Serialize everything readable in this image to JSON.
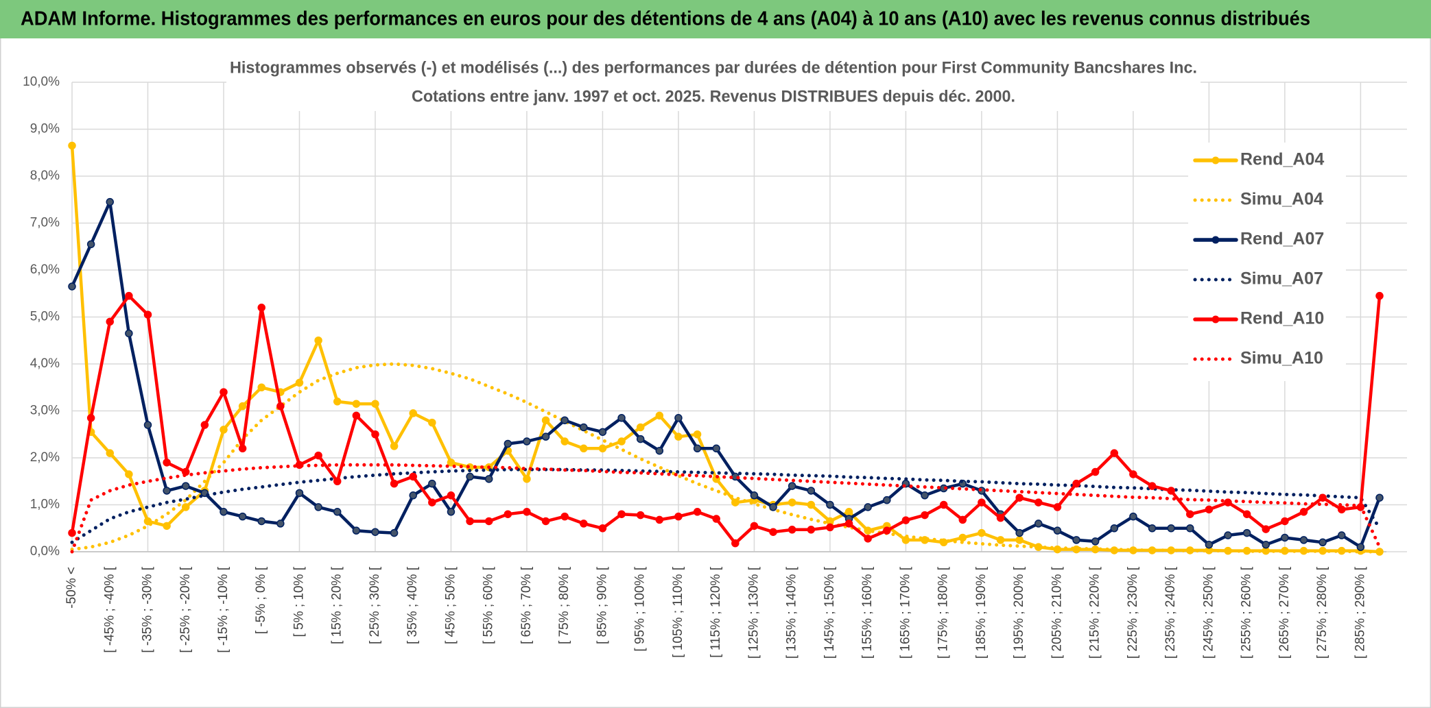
{
  "header": {
    "title": "ADAM Informe. Histogrammes des performances en euros pour des détentions de 4 ans (A04) à 10 ans (A10) avec les revenus connus distribués"
  },
  "chart_data": {
    "type": "line",
    "title": "Histogrammes observés (-) et modélisés (...) des performances par durées de détention pour First Community Bancshares Inc.",
    "subtitle": "Cotations entre janv. 1997 et oct. 2025. Revenus DISTRIBUES depuis déc. 2000.",
    "categories": [
      "-50% <",
      null,
      "[ -45% ; -40% [",
      null,
      "[ -35% ; -30% [",
      null,
      "[ -25% ; -20% [",
      null,
      "[ -15% ; -10% [",
      null,
      "[ -5% ; 0% [",
      null,
      "[ 5% ; 10% [",
      null,
      "[ 15% ; 20% [",
      null,
      "[ 25% ; 30% [",
      null,
      "[ 35% ; 40% [",
      null,
      "[ 45% ; 50% [",
      null,
      "[ 55% ; 60% [",
      null,
      "[ 65% ; 70% [",
      null,
      "[ 75% ; 80% [",
      null,
      "[ 85% ; 90% [",
      null,
      "[ 95% ; 100% [",
      null,
      "[ 105% ; 110% [",
      null,
      "[ 115% ; 120% [",
      null,
      "[ 125% ; 130% [",
      null,
      "[ 135% ; 140% [",
      null,
      "[ 145% ; 150% [",
      null,
      "[ 155% ; 160% [",
      null,
      "[ 165% ; 170% [",
      null,
      "[ 175% ; 180% [",
      null,
      "[ 185% ; 190% [",
      null,
      "[ 195% ; 200% [",
      null,
      "[ 205% ; 210% [",
      null,
      "[ 215% ; 220% [",
      null,
      "[ 225% ; 230% [",
      null,
      "[ 235% ; 240% [",
      null,
      "[ 245% ; 250% [",
      null,
      "[ 255% ; 260% [",
      null,
      "[ 265% ; 270% [",
      null,
      "[ 275% ; 280% [",
      null,
      "[ 285% ; 290% [",
      null
    ],
    "ylim": [
      0,
      10
    ],
    "yticks": [
      {
        "value": 0,
        "label": "0,0%"
      },
      {
        "value": 1,
        "label": "1,0%"
      },
      {
        "value": 2,
        "label": "2,0%"
      },
      {
        "value": 3,
        "label": "3,0%"
      },
      {
        "value": 4,
        "label": "4,0%"
      },
      {
        "value": 5,
        "label": "5,0%"
      },
      {
        "value": 6,
        "label": "6,0%"
      },
      {
        "value": 7,
        "label": "7,0%"
      },
      {
        "value": 8,
        "label": "8,0%"
      },
      {
        "value": 9,
        "label": "9,0%"
      },
      {
        "value": 10,
        "label": "10,0%"
      }
    ],
    "grid": true,
    "legend": "right",
    "series": [
      {
        "name": "Rend_A04",
        "color": "#ffc000",
        "style": "solid",
        "values": [
          8.65,
          2.55,
          2.1,
          1.65,
          0.65,
          0.55,
          0.95,
          1.3,
          2.6,
          3.1,
          3.5,
          3.4,
          3.6,
          4.5,
          3.2,
          3.15,
          3.15,
          2.25,
          2.95,
          2.75,
          1.9,
          1.8,
          1.8,
          2.15,
          1.55,
          2.8,
          2.35,
          2.2,
          2.2,
          2.35,
          2.65,
          2.9,
          2.45,
          2.5,
          1.55,
          1.05,
          1.1,
          1.0,
          1.05,
          1.0,
          0.65,
          0.85,
          0.45,
          0.55,
          0.25,
          0.25,
          0.2,
          0.3,
          0.4,
          0.25,
          0.25,
          0.1,
          0.05,
          0.05,
          0.05,
          0.03,
          0.03,
          0.03,
          0.03,
          0.03,
          0.03,
          0.02,
          0.02,
          0.02,
          0.02,
          0.02,
          0.02,
          0.02,
          0.02,
          0.0
        ]
      },
      {
        "name": "Simu_A04",
        "color": "#ffc000",
        "style": "dotted",
        "values": [
          0.05,
          0.1,
          0.2,
          0.35,
          0.55,
          0.8,
          1.1,
          1.5,
          1.9,
          2.4,
          2.8,
          3.1,
          3.4,
          3.65,
          3.8,
          3.92,
          3.98,
          4.0,
          3.97,
          3.9,
          3.8,
          3.68,
          3.52,
          3.36,
          3.18,
          2.98,
          2.78,
          2.58,
          2.38,
          2.18,
          1.98,
          1.8,
          1.62,
          1.45,
          1.3,
          1.15,
          1.02,
          0.9,
          0.79,
          0.69,
          0.6,
          0.52,
          0.45,
          0.39,
          0.33,
          0.28,
          0.24,
          0.2,
          0.17,
          0.14,
          0.12,
          0.1,
          0.08,
          0.07,
          0.06,
          0.05,
          0.04,
          0.03,
          0.03,
          0.02,
          0.02,
          0.02,
          0.01,
          0.01,
          0.01,
          0.01,
          0.01,
          0.01,
          0.0,
          0.0
        ]
      },
      {
        "name": "Rend_A07",
        "color": "#002060",
        "style": "solid",
        "values": [
          5.65,
          6.55,
          7.45,
          4.65,
          2.7,
          1.3,
          1.4,
          1.25,
          0.85,
          0.75,
          0.65,
          0.6,
          1.25,
          0.95,
          0.85,
          0.45,
          0.42,
          0.4,
          1.2,
          1.45,
          0.85,
          1.6,
          1.55,
          2.3,
          2.35,
          2.45,
          2.8,
          2.65,
          2.55,
          2.85,
          2.4,
          2.15,
          2.85,
          2.2,
          2.2,
          1.6,
          1.2,
          0.95,
          1.4,
          1.3,
          1.0,
          0.7,
          0.95,
          1.1,
          1.45,
          1.2,
          1.35,
          1.45,
          1.3,
          0.8,
          0.4,
          0.6,
          0.45,
          0.25,
          0.22,
          0.5,
          0.75,
          0.5,
          0.5,
          0.5,
          0.15,
          0.35,
          0.4,
          0.15,
          0.3,
          0.25,
          0.2,
          0.35,
          0.1,
          1.15
        ]
      },
      {
        "name": "Simu_A07",
        "color": "#002060",
        "style": "dotted",
        "values": [
          0.2,
          0.45,
          0.7,
          0.85,
          0.95,
          1.05,
          1.12,
          1.2,
          1.27,
          1.33,
          1.38,
          1.43,
          1.48,
          1.52,
          1.56,
          1.6,
          1.63,
          1.66,
          1.68,
          1.7,
          1.72,
          1.73,
          1.74,
          1.75,
          1.75,
          1.75,
          1.75,
          1.74,
          1.74,
          1.73,
          1.72,
          1.71,
          1.7,
          1.69,
          1.68,
          1.67,
          1.66,
          1.65,
          1.63,
          1.62,
          1.61,
          1.59,
          1.58,
          1.56,
          1.55,
          1.53,
          1.52,
          1.5,
          1.49,
          1.47,
          1.45,
          1.44,
          1.42,
          1.41,
          1.39,
          1.37,
          1.36,
          1.34,
          1.32,
          1.31,
          1.29,
          1.27,
          1.26,
          1.24,
          1.22,
          1.21,
          1.19,
          1.17,
          1.15,
          0.5
        ]
      },
      {
        "name": "Rend_A10",
        "color": "#ff0000",
        "style": "solid",
        "values": [
          0.4,
          2.85,
          4.9,
          5.45,
          5.05,
          1.9,
          1.7,
          2.7,
          3.4,
          2.2,
          5.2,
          3.1,
          1.85,
          2.05,
          1.5,
          2.9,
          2.5,
          1.45,
          1.6,
          1.05,
          1.2,
          0.65,
          0.65,
          0.8,
          0.85,
          0.65,
          0.75,
          0.6,
          0.5,
          0.8,
          0.78,
          0.68,
          0.75,
          0.85,
          0.7,
          0.18,
          0.55,
          0.42,
          0.47,
          0.47,
          0.52,
          0.6,
          0.28,
          0.45,
          0.67,
          0.78,
          1.0,
          0.68,
          1.05,
          0.72,
          1.15,
          1.05,
          0.95,
          1.45,
          1.7,
          2.1,
          1.65,
          1.4,
          1.3,
          0.8,
          0.9,
          1.05,
          0.8,
          0.48,
          0.65,
          0.85,
          1.15,
          0.9,
          0.95,
          5.45
        ]
      },
      {
        "name": "Simu_A10",
        "color": "#ff0000",
        "style": "dotted",
        "values": [
          0.0,
          1.1,
          1.3,
          1.42,
          1.5,
          1.57,
          1.63,
          1.68,
          1.72,
          1.76,
          1.79,
          1.81,
          1.83,
          1.84,
          1.85,
          1.85,
          1.85,
          1.85,
          1.84,
          1.83,
          1.82,
          1.81,
          1.8,
          1.79,
          1.77,
          1.76,
          1.74,
          1.73,
          1.71,
          1.69,
          1.68,
          1.66,
          1.64,
          1.62,
          1.6,
          1.58,
          1.56,
          1.54,
          1.52,
          1.5,
          1.48,
          1.46,
          1.44,
          1.42,
          1.4,
          1.38,
          1.36,
          1.34,
          1.32,
          1.3,
          1.28,
          1.26,
          1.24,
          1.22,
          1.2,
          1.18,
          1.16,
          1.15,
          1.13,
          1.11,
          1.1,
          1.08,
          1.07,
          1.05,
          1.04,
          1.02,
          1.01,
          1.0,
          0.98,
          0.1
        ]
      }
    ]
  }
}
